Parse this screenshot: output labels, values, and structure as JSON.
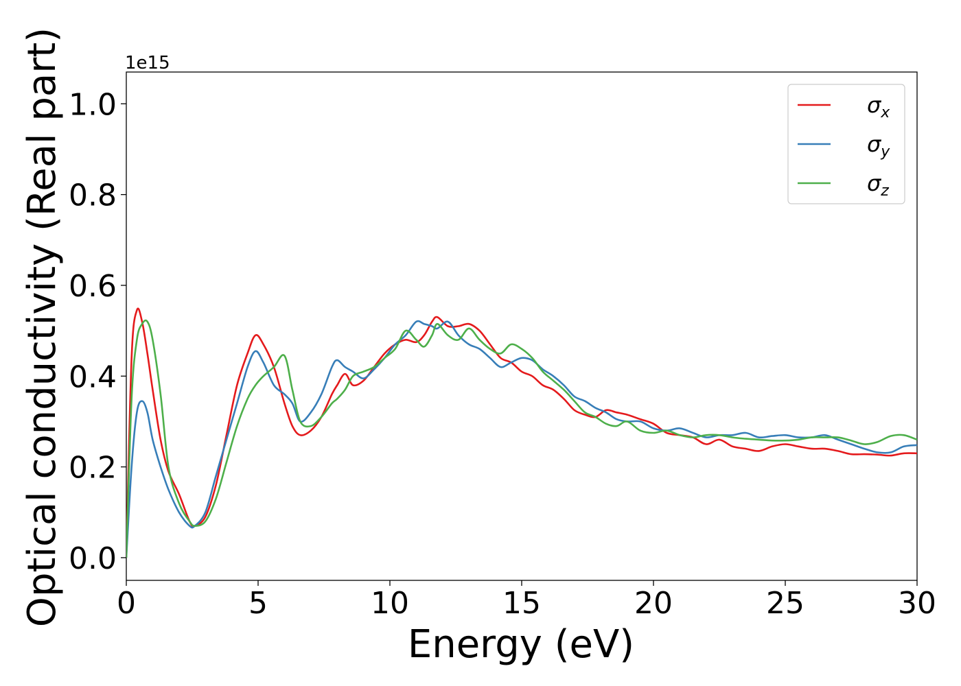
{
  "chart_data": {
    "type": "line",
    "xlabel": "Energy (eV)",
    "ylabel": "Optical conductivity (Real part)",
    "offset_text": "1e15",
    "xlim": [
      0,
      30
    ],
    "ylim": [
      -0.05,
      1.07
    ],
    "xticks": [
      0,
      5,
      10,
      15,
      20,
      25,
      30
    ],
    "yticks": [
      0.0,
      0.2,
      0.4,
      0.6,
      0.8,
      1.0
    ],
    "grid": false,
    "legend_position": "upper-right",
    "series": [
      {
        "name": "σx",
        "legend": {
          "base": "σ",
          "sub": "x"
        },
        "color": "#e41a1c",
        "x": [
          0,
          0.2,
          0.4,
          0.6,
          0.8,
          1.0,
          1.3,
          1.6,
          2.0,
          2.4,
          2.6,
          3.0,
          3.4,
          3.8,
          4.2,
          4.6,
          4.9,
          5.2,
          5.6,
          6.0,
          6.3,
          6.6,
          7.0,
          7.4,
          7.8,
          8.0,
          8.3,
          8.6,
          9.0,
          9.4,
          9.8,
          10.2,
          10.6,
          11.0,
          11.3,
          11.6,
          11.8,
          12.2,
          12.6,
          13.0,
          13.4,
          13.8,
          14.2,
          14.6,
          15.0,
          15.4,
          15.8,
          16.2,
          16.6,
          17.0,
          17.4,
          17.8,
          18.2,
          18.6,
          19.0,
          19.5,
          20.0,
          20.5,
          21.0,
          21.5,
          22.0,
          22.5,
          23.0,
          23.5,
          24.0,
          24.5,
          25.0,
          25.5,
          26.0,
          26.5,
          27.0,
          27.5,
          28.0,
          28.5,
          29.0,
          29.5,
          30.0
        ],
        "values": [
          0.0,
          0.44,
          0.545,
          0.52,
          0.45,
          0.37,
          0.26,
          0.19,
          0.14,
          0.08,
          0.07,
          0.09,
          0.16,
          0.27,
          0.38,
          0.45,
          0.49,
          0.47,
          0.42,
          0.34,
          0.29,
          0.27,
          0.28,
          0.31,
          0.36,
          0.38,
          0.405,
          0.38,
          0.39,
          0.42,
          0.45,
          0.47,
          0.48,
          0.475,
          0.49,
          0.52,
          0.53,
          0.51,
          0.51,
          0.515,
          0.5,
          0.47,
          0.44,
          0.43,
          0.41,
          0.4,
          0.38,
          0.37,
          0.35,
          0.325,
          0.315,
          0.31,
          0.325,
          0.32,
          0.315,
          0.305,
          0.295,
          0.275,
          0.27,
          0.265,
          0.25,
          0.26,
          0.245,
          0.24,
          0.235,
          0.245,
          0.25,
          0.245,
          0.24,
          0.24,
          0.235,
          0.228,
          0.228,
          0.227,
          0.225,
          0.23,
          0.23
        ]
      },
      {
        "name": "σy",
        "legend": {
          "base": "σ",
          "sub": "y"
        },
        "color": "#377eb8",
        "x": [
          0,
          0.2,
          0.4,
          0.6,
          0.8,
          1.0,
          1.3,
          1.6,
          2.0,
          2.4,
          2.6,
          3.0,
          3.4,
          3.8,
          4.2,
          4.6,
          4.9,
          5.2,
          5.6,
          6.0,
          6.3,
          6.6,
          7.0,
          7.4,
          7.8,
          8.0,
          8.3,
          8.6,
          9.0,
          9.4,
          9.8,
          10.2,
          10.6,
          11.0,
          11.3,
          11.6,
          11.8,
          12.2,
          12.6,
          13.0,
          13.4,
          13.8,
          14.2,
          14.6,
          15.0,
          15.4,
          15.8,
          16.2,
          16.6,
          17.0,
          17.4,
          17.8,
          18.2,
          18.6,
          19.0,
          19.5,
          20.0,
          20.5,
          21.0,
          21.5,
          22.0,
          22.5,
          23.0,
          23.5,
          24.0,
          24.5,
          25.0,
          25.5,
          26.0,
          26.5,
          27.0,
          27.5,
          28.0,
          28.5,
          29.0,
          29.5,
          30.0
        ],
        "values": [
          0.0,
          0.2,
          0.32,
          0.345,
          0.32,
          0.26,
          0.2,
          0.15,
          0.1,
          0.07,
          0.07,
          0.1,
          0.18,
          0.26,
          0.34,
          0.42,
          0.455,
          0.43,
          0.38,
          0.36,
          0.34,
          0.3,
          0.32,
          0.36,
          0.42,
          0.435,
          0.42,
          0.41,
          0.395,
          0.415,
          0.44,
          0.47,
          0.49,
          0.52,
          0.515,
          0.51,
          0.505,
          0.52,
          0.49,
          0.47,
          0.46,
          0.44,
          0.42,
          0.43,
          0.44,
          0.435,
          0.415,
          0.4,
          0.38,
          0.355,
          0.345,
          0.33,
          0.32,
          0.305,
          0.3,
          0.3,
          0.285,
          0.28,
          0.285,
          0.275,
          0.265,
          0.27,
          0.27,
          0.275,
          0.265,
          0.268,
          0.27,
          0.265,
          0.265,
          0.27,
          0.26,
          0.25,
          0.24,
          0.232,
          0.232,
          0.245,
          0.248
        ]
      },
      {
        "name": "σz",
        "legend": {
          "base": "σ",
          "sub": "z"
        },
        "color": "#4daf4a",
        "x": [
          0,
          0.2,
          0.4,
          0.6,
          0.8,
          1.0,
          1.3,
          1.6,
          2.0,
          2.4,
          2.6,
          3.0,
          3.4,
          3.8,
          4.2,
          4.6,
          4.9,
          5.2,
          5.6,
          6.0,
          6.3,
          6.6,
          7.0,
          7.4,
          7.8,
          8.0,
          8.3,
          8.6,
          9.0,
          9.4,
          9.8,
          10.2,
          10.6,
          11.0,
          11.3,
          11.6,
          11.8,
          12.2,
          12.6,
          13.0,
          13.4,
          13.8,
          14.2,
          14.6,
          15.0,
          15.4,
          15.8,
          16.2,
          16.6,
          17.0,
          17.4,
          17.8,
          18.2,
          18.6,
          19.0,
          19.5,
          20.0,
          20.5,
          21.0,
          21.5,
          22.0,
          22.5,
          23.0,
          23.5,
          24.0,
          24.5,
          25.0,
          25.5,
          26.0,
          26.5,
          27.0,
          27.5,
          28.0,
          28.5,
          29.0,
          29.5,
          30.0
        ],
        "values": [
          0.0,
          0.35,
          0.48,
          0.515,
          0.52,
          0.48,
          0.36,
          0.2,
          0.12,
          0.08,
          0.07,
          0.08,
          0.13,
          0.21,
          0.29,
          0.35,
          0.38,
          0.4,
          0.42,
          0.445,
          0.37,
          0.3,
          0.29,
          0.31,
          0.34,
          0.35,
          0.37,
          0.4,
          0.41,
          0.42,
          0.44,
          0.46,
          0.5,
          0.48,
          0.465,
          0.49,
          0.515,
          0.49,
          0.48,
          0.505,
          0.48,
          0.46,
          0.45,
          0.47,
          0.46,
          0.44,
          0.41,
          0.39,
          0.37,
          0.345,
          0.32,
          0.31,
          0.295,
          0.29,
          0.3,
          0.28,
          0.275,
          0.28,
          0.27,
          0.265,
          0.27,
          0.27,
          0.265,
          0.262,
          0.26,
          0.258,
          0.258,
          0.26,
          0.265,
          0.265,
          0.265,
          0.258,
          0.25,
          0.255,
          0.268,
          0.27,
          0.26
        ]
      }
    ]
  }
}
